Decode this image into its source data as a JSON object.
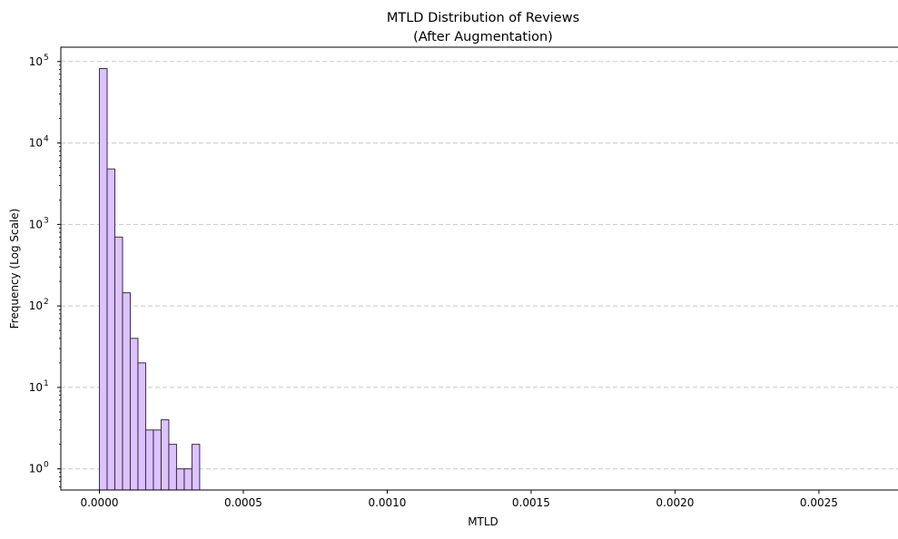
{
  "chart_data": {
    "type": "bar",
    "title": "MTLD Distribution of Reviews",
    "subtitle": "(After Augmentation)",
    "xlabel": "MTLD",
    "ylabel": "Frequency (Log Scale)",
    "x_scale": "linear",
    "y_scale": "log",
    "xlim": [
      -0.000134,
      0.0028
    ],
    "ylim": [
      0.55,
      150000
    ],
    "grid": {
      "y": true,
      "x": false,
      "style": "dashed"
    },
    "x_ticks": [
      {
        "value": 0.0,
        "label": "0.0000"
      },
      {
        "value": 0.0005,
        "label": "0.0005"
      },
      {
        "value": 0.001,
        "label": "0.0010"
      },
      {
        "value": 0.0015,
        "label": "0.0015"
      },
      {
        "value": 0.002,
        "label": "0.0020"
      },
      {
        "value": 0.0025,
        "label": "0.0025"
      }
    ],
    "y_ticks": [
      {
        "value": 1,
        "base": "10",
        "exp": "0"
      },
      {
        "value": 10,
        "base": "10",
        "exp": "1"
      },
      {
        "value": 100,
        "base": "10",
        "exp": "2"
      },
      {
        "value": 1000,
        "base": "10",
        "exp": "3"
      },
      {
        "value": 10000,
        "base": "10",
        "exp": "4"
      },
      {
        "value": 100000,
        "base": "10",
        "exp": "5"
      }
    ],
    "bin_width": 2.68e-05,
    "bins": [
      {
        "x_start": 0.0,
        "count": 82000
      },
      {
        "x_start": 2.68e-05,
        "count": 4800
      },
      {
        "x_start": 5.36e-05,
        "count": 700
      },
      {
        "x_start": 8.04e-05,
        "count": 145
      },
      {
        "x_start": 0.0001072,
        "count": 40
      },
      {
        "x_start": 0.000134,
        "count": 20
      },
      {
        "x_start": 0.0001608,
        "count": 3
      },
      {
        "x_start": 0.0001876,
        "count": 3
      },
      {
        "x_start": 0.0002144,
        "count": 4
      },
      {
        "x_start": 0.0002412,
        "count": 2
      },
      {
        "x_start": 0.000268,
        "count": 1
      },
      {
        "x_start": 0.0002948,
        "count": 1
      },
      {
        "x_start": 0.0003216,
        "count": 2
      }
    ],
    "colors": {
      "bar_fill": "#dcc3ff",
      "bar_edge": "#3b2a45",
      "grid": "#c8c8c8"
    }
  }
}
